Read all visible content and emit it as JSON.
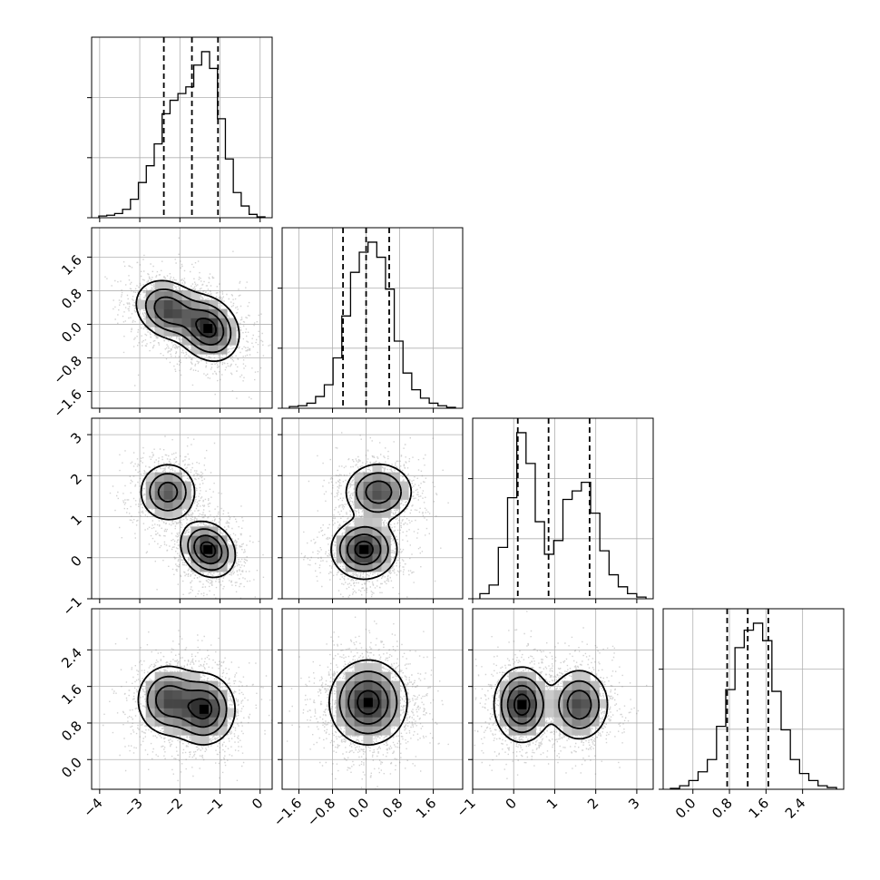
{
  "figure": {
    "type": "corner-plot",
    "background": "#ffffff",
    "line_color": "#000000",
    "grid_color": "#b0b0b0",
    "scatter_color": "#7f7f7f"
  },
  "chart_data": {
    "type": "corner",
    "parameters": [
      {
        "range": [
          -4.2,
          0.3
        ],
        "ticks": [
          -4,
          -3,
          -2,
          -1,
          0
        ],
        "tick_labels": [
          "−4",
          "−3",
          "−2",
          "−1",
          "0"
        ],
        "quantiles": [
          -2.4,
          -1.7,
          -1.05
        ]
      },
      {
        "range": [
          -2.0,
          2.3
        ],
        "ticks": [
          -1.6,
          -0.8,
          0.0,
          0.8,
          1.6
        ],
        "tick_labels": [
          "−1.6",
          "−0.8",
          "0.0",
          "0.8",
          "1.6"
        ],
        "quantiles": [
          -0.55,
          0.0,
          0.55
        ]
      },
      {
        "range": [
          -1.0,
          3.4
        ],
        "ticks": [
          -1,
          0,
          1,
          2,
          3
        ],
        "tick_labels": [
          "−1",
          "0",
          "1",
          "2",
          "3"
        ],
        "quantiles": [
          0.1,
          0.85,
          1.85
        ]
      },
      {
        "range": [
          -0.65,
          3.3
        ],
        "ticks": [
          0.0,
          0.8,
          1.6,
          2.4
        ],
        "tick_labels": [
          "0.0",
          "0.8",
          "1.6",
          "2.4"
        ],
        "quantiles": [
          0.75,
          1.2,
          1.65
        ]
      }
    ],
    "histograms": [
      {
        "values": [
          0.01,
          0.015,
          0.025,
          0.05,
          0.11,
          0.21,
          0.31,
          0.44,
          0.62,
          0.7,
          0.74,
          0.78,
          0.91,
          0.99,
          0.89,
          0.59,
          0.35,
          0.15,
          0.07,
          0.02,
          0.005
        ]
      },
      {
        "values": [
          0.01,
          0.015,
          0.03,
          0.07,
          0.14,
          0.3,
          0.55,
          0.81,
          0.93,
          0.99,
          0.9,
          0.71,
          0.4,
          0.21,
          0.11,
          0.06,
          0.03,
          0.015,
          0.005
        ]
      },
      {
        "values": [
          0.03,
          0.08,
          0.3,
          0.59,
          0.97,
          0.79,
          0.45,
          0.26,
          0.34,
          0.58,
          0.63,
          0.68,
          0.5,
          0.28,
          0.14,
          0.07,
          0.03,
          0.01
        ]
      },
      {
        "values": [
          0.005,
          0.02,
          0.05,
          0.1,
          0.17,
          0.36,
          0.57,
          0.81,
          0.91,
          0.95,
          0.85,
          0.56,
          0.34,
          0.17,
          0.09,
          0.05,
          0.02,
          0.01
        ]
      }
    ],
    "pairs": [
      {
        "x": 0,
        "y": 1,
        "components": [
          {
            "mx": -1.3,
            "my": -0.1,
            "sx": 0.38,
            "sy": 0.38,
            "rho": -0.2,
            "w": 0.55
          },
          {
            "mx": -2.3,
            "my": 0.35,
            "sx": 0.4,
            "sy": 0.35,
            "rho": -0.2,
            "w": 0.45
          }
        ]
      },
      {
        "x": 0,
        "y": 2,
        "components": [
          {
            "mx": -1.3,
            "my": 0.2,
            "sx": 0.33,
            "sy": 0.33,
            "rho": -0.2,
            "w": 0.55
          },
          {
            "mx": -2.3,
            "my": 1.6,
            "sx": 0.35,
            "sy": 0.35,
            "rho": 0.0,
            "w": 0.45
          }
        ]
      },
      {
        "x": 1,
        "y": 2,
        "components": [
          {
            "mx": -0.05,
            "my": 0.2,
            "sx": 0.38,
            "sy": 0.35,
            "rho": 0.0,
            "w": 0.55
          },
          {
            "mx": 0.3,
            "my": 1.6,
            "sx": 0.4,
            "sy": 0.35,
            "rho": 0.0,
            "w": 0.45
          }
        ]
      },
      {
        "x": 0,
        "y": 3,
        "components": [
          {
            "mx": -1.4,
            "my": 1.1,
            "sx": 0.38,
            "sy": 0.38,
            "rho": 0.0,
            "w": 0.55
          },
          {
            "mx": -2.3,
            "my": 1.3,
            "sx": 0.38,
            "sy": 0.38,
            "rho": 0.0,
            "w": 0.45
          }
        ]
      },
      {
        "x": 1,
        "y": 3,
        "components": [
          {
            "mx": 0.05,
            "my": 1.25,
            "sx": 0.45,
            "sy": 0.45,
            "rho": 0.0,
            "w": 1.0
          }
        ]
      },
      {
        "x": 2,
        "y": 3,
        "components": [
          {
            "mx": 0.2,
            "my": 1.2,
            "sx": 0.33,
            "sy": 0.4,
            "rho": 0.0,
            "w": 0.55
          },
          {
            "mx": 1.6,
            "my": 1.2,
            "sx": 0.35,
            "sy": 0.38,
            "rho": 0.0,
            "w": 0.45
          }
        ]
      }
    ]
  }
}
